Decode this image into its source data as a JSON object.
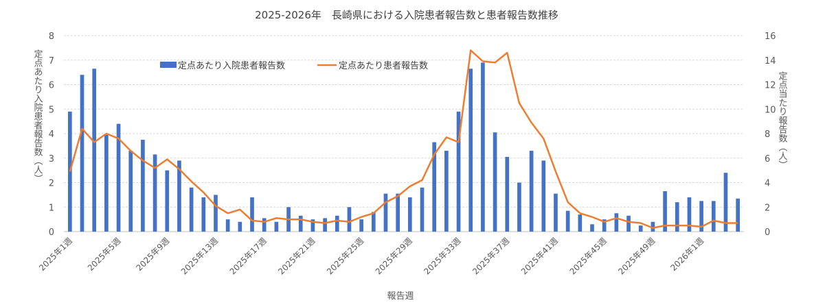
{
  "chart_data": {
    "type": "bar+line",
    "title": "2025-2026年　長崎県における入院患者報告数と患者報告数推移",
    "xlabel": "報告週",
    "ylabel_left": "定点あたり入院患者報告数（人）",
    "ylabel_right": "定点当たり報告数（人）",
    "ylim_left": [
      0,
      8
    ],
    "ylim_right": [
      0,
      16
    ],
    "yticks_left": [
      "0",
      "1",
      "2",
      "3",
      "4",
      "5",
      "6",
      "7",
      "8"
    ],
    "yticks_right": [
      "0",
      "2",
      "4",
      "6",
      "8",
      "10",
      "12",
      "14",
      "16"
    ],
    "grid": true,
    "legend_position": "top-left",
    "categories": [
      "2025年1週",
      "2025年2週",
      "2025年3週",
      "2025年4週",
      "2025年5週",
      "2025年6週",
      "2025年7週",
      "2025年8週",
      "2025年9週",
      "2025年10週",
      "2025年11週",
      "2025年12週",
      "2025年13週",
      "2025年14週",
      "2025年15週",
      "2025年16週",
      "2025年17週",
      "2025年18週",
      "2025年19週",
      "2025年20週",
      "2025年21週",
      "2025年22週",
      "2025年23週",
      "2025年24週",
      "2025年25週",
      "2025年26週",
      "2025年27週",
      "2025年28週",
      "2025年29週",
      "2025年30週",
      "2025年31週",
      "2025年32週",
      "2025年33週",
      "2025年34週",
      "2025年35週",
      "2025年36週",
      "2025年37週",
      "2025年38週",
      "2025年39週",
      "2025年40週",
      "2025年41週",
      "2025年42週",
      "2025年43週",
      "2025年44週",
      "2025年45週",
      "2025年46週",
      "2025年47週",
      "2025年48週",
      "2025年49週",
      "2025年50週",
      "2025年51週",
      "2025年52週",
      "2026年1週",
      "2026年2週",
      "2026年3週",
      "2026年4週"
    ],
    "xtick_labels_shown": [
      "2025年1週",
      "2025年5週",
      "2025年9週",
      "2025年13週",
      "2025年17週",
      "2025年21週",
      "2025年25週",
      "2025年29週",
      "2025年33週",
      "2025年37週",
      "2025年41週",
      "2025年45週",
      "2025年49週",
      "2026年1週"
    ],
    "series": [
      {
        "name": "定点あたり入院患者報告数",
        "type": "bar",
        "axis": "left",
        "color": "#4472C4",
        "values": [
          4.9,
          6.4,
          6.65,
          3.95,
          4.4,
          3.3,
          3.75,
          3.15,
          2.5,
          2.9,
          1.8,
          1.4,
          1.5,
          0.5,
          0.4,
          1.4,
          0.55,
          0.4,
          1.0,
          0.65,
          0.5,
          0.55,
          0.65,
          1.0,
          0.5,
          0.8,
          1.55,
          1.55,
          1.4,
          1.8,
          3.65,
          3.3,
          4.9,
          6.65,
          6.9,
          4.05,
          3.05,
          2.0,
          3.3,
          2.9,
          1.55,
          0.85,
          0.7,
          0.3,
          0.5,
          0.75,
          0.65,
          0.25,
          0.4,
          1.65,
          1.2,
          1.4,
          1.25,
          1.25,
          2.4,
          1.35
        ]
      },
      {
        "name": "定点あたり患者報告数",
        "type": "line",
        "axis": "right",
        "color": "#ED7D31",
        "values": [
          4.9,
          8.4,
          7.3,
          8.0,
          7.6,
          6.6,
          5.8,
          5.2,
          5.9,
          5.1,
          4.1,
          3.2,
          2.1,
          1.5,
          1.8,
          0.9,
          0.8,
          1.1,
          1.0,
          1.0,
          0.8,
          0.7,
          0.9,
          0.8,
          1.2,
          1.5,
          2.4,
          2.9,
          3.7,
          4.2,
          6.3,
          7.7,
          7.3,
          14.8,
          13.9,
          13.8,
          14.6,
          10.5,
          8.9,
          7.6,
          4.9,
          2.4,
          1.5,
          1.2,
          0.8,
          1.1,
          0.8,
          0.7,
          0.3,
          0.5,
          0.5,
          0.5,
          0.4,
          0.9,
          0.7,
          0.7
        ]
      }
    ]
  }
}
